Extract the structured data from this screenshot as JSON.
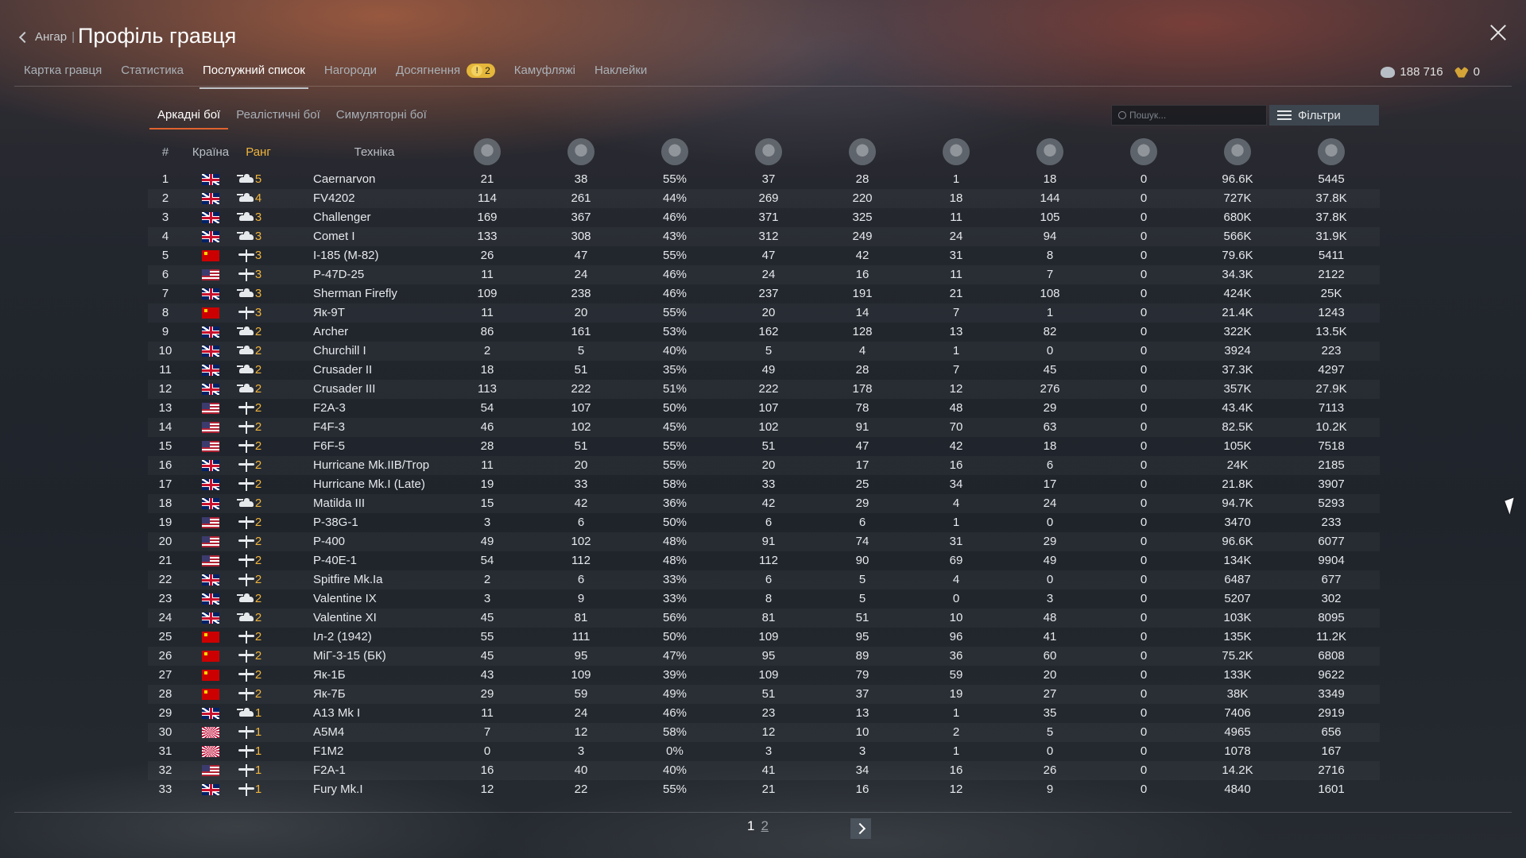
{
  "header": {
    "back_label": "Ангар",
    "separator": "|",
    "title": "Профіль гравця",
    "tabs": [
      {
        "label": "Картка гравця",
        "active": false
      },
      {
        "label": "Статистика",
        "active": false
      },
      {
        "label": "Послужний список",
        "active": true
      },
      {
        "label": "Нагороди",
        "active": false
      },
      {
        "label": "Досягнення",
        "active": false,
        "badge": "2",
        "badge_icon": "!"
      },
      {
        "label": "Камуфляжі",
        "active": false
      },
      {
        "label": "Наклейки",
        "active": false
      }
    ],
    "currency": {
      "lions": "188 716",
      "eagles": "0"
    }
  },
  "mode_tabs": [
    {
      "label": "Аркадні бої",
      "active": true
    },
    {
      "label": "Реалістичні бої",
      "active": false
    },
    {
      "label": "Симуляторні бої",
      "active": false
    }
  ],
  "search": {
    "placeholder": "Пошук..."
  },
  "filters_label": "Фільтри",
  "columns": {
    "number": "#",
    "country": "Країна",
    "rank": "Ранг",
    "vehicle": "Техніка",
    "stat_icons": [
      "victories-icon",
      "battles-icon",
      "win-rate-icon",
      "respawns-icon",
      "deaths-icon",
      "air-kills-icon",
      "ground-kills-icon",
      "naval-kills-icon",
      "score-icon",
      "activity-icon"
    ]
  },
  "rows": [
    {
      "n": "1",
      "flag": "uk",
      "rank": "5",
      "type": "tank",
      "name": "Caernarvon",
      "s": [
        "21",
        "38",
        "55%",
        "37",
        "28",
        "1",
        "18",
        "0",
        "96.6K",
        "5445"
      ]
    },
    {
      "n": "2",
      "flag": "uk",
      "rank": "4",
      "type": "tank",
      "name": "FV4202",
      "s": [
        "114",
        "261",
        "44%",
        "269",
        "220",
        "18",
        "144",
        "0",
        "727K",
        "37.8K"
      ]
    },
    {
      "n": "3",
      "flag": "uk",
      "rank": "3",
      "type": "tank",
      "name": "Challenger",
      "s": [
        "169",
        "367",
        "46%",
        "371",
        "325",
        "11",
        "105",
        "0",
        "680K",
        "37.8K"
      ]
    },
    {
      "n": "4",
      "flag": "uk",
      "rank": "3",
      "type": "tank",
      "name": "Comet I",
      "s": [
        "133",
        "308",
        "43%",
        "312",
        "249",
        "24",
        "94",
        "0",
        "566K",
        "31.9K"
      ]
    },
    {
      "n": "5",
      "flag": "ussr",
      "rank": "3",
      "type": "plane",
      "name": "I-185 (M-82)",
      "s": [
        "26",
        "47",
        "55%",
        "47",
        "42",
        "31",
        "8",
        "0",
        "79.6K",
        "5411"
      ]
    },
    {
      "n": "6",
      "flag": "us",
      "rank": "3",
      "type": "plane",
      "name": "P-47D-25",
      "s": [
        "11",
        "24",
        "46%",
        "24",
        "16",
        "11",
        "7",
        "0",
        "34.3K",
        "2122"
      ]
    },
    {
      "n": "7",
      "flag": "uk",
      "rank": "3",
      "type": "tank",
      "name": "Sherman Firefly",
      "s": [
        "109",
        "238",
        "46%",
        "237",
        "191",
        "21",
        "108",
        "0",
        "424K",
        "25K"
      ]
    },
    {
      "n": "8",
      "flag": "ussr",
      "rank": "3",
      "type": "plane",
      "name": "Як-9Т",
      "s": [
        "11",
        "20",
        "55%",
        "20",
        "14",
        "7",
        "1",
        "0",
        "21.4K",
        "1243"
      ]
    },
    {
      "n": "9",
      "flag": "uk",
      "rank": "2",
      "type": "tank",
      "name": "Archer",
      "s": [
        "86",
        "161",
        "53%",
        "162",
        "128",
        "13",
        "82",
        "0",
        "322K",
        "13.5K"
      ]
    },
    {
      "n": "10",
      "flag": "uk",
      "rank": "2",
      "type": "tank",
      "name": "Churchill I",
      "s": [
        "2",
        "5",
        "40%",
        "5",
        "4",
        "1",
        "0",
        "0",
        "3924",
        "223"
      ]
    },
    {
      "n": "11",
      "flag": "uk",
      "rank": "2",
      "type": "tank",
      "name": "Crusader II",
      "s": [
        "18",
        "51",
        "35%",
        "49",
        "28",
        "7",
        "45",
        "0",
        "37.3K",
        "4297"
      ]
    },
    {
      "n": "12",
      "flag": "uk",
      "rank": "2",
      "type": "tank",
      "name": "Crusader III",
      "s": [
        "113",
        "222",
        "51%",
        "222",
        "178",
        "12",
        "276",
        "0",
        "357K",
        "27.9K"
      ]
    },
    {
      "n": "13",
      "flag": "us",
      "rank": "2",
      "type": "plane",
      "name": "F2A-3",
      "s": [
        "54",
        "107",
        "50%",
        "107",
        "78",
        "48",
        "29",
        "0",
        "43.4K",
        "7113"
      ]
    },
    {
      "n": "14",
      "flag": "us",
      "rank": "2",
      "type": "plane",
      "name": "F4F-3",
      "s": [
        "46",
        "102",
        "45%",
        "102",
        "91",
        "70",
        "63",
        "0",
        "82.5K",
        "10.2K"
      ]
    },
    {
      "n": "15",
      "flag": "us",
      "rank": "2",
      "type": "plane",
      "name": "F6F-5",
      "s": [
        "28",
        "51",
        "55%",
        "51",
        "47",
        "42",
        "18",
        "0",
        "105K",
        "7518"
      ]
    },
    {
      "n": "16",
      "flag": "uk",
      "rank": "2",
      "type": "plane",
      "name": "Hurricane Mk.IIB/Trop",
      "s": [
        "11",
        "20",
        "55%",
        "20",
        "17",
        "16",
        "6",
        "0",
        "24K",
        "2185"
      ]
    },
    {
      "n": "17",
      "flag": "uk",
      "rank": "2",
      "type": "plane",
      "name": "Hurricane Mk.I (Late)",
      "s": [
        "19",
        "33",
        "58%",
        "33",
        "25",
        "34",
        "17",
        "0",
        "21.8K",
        "3907"
      ]
    },
    {
      "n": "18",
      "flag": "uk",
      "rank": "2",
      "type": "tank",
      "name": "Matilda III",
      "s": [
        "15",
        "42",
        "36%",
        "42",
        "29",
        "4",
        "24",
        "0",
        "94.7K",
        "5293"
      ]
    },
    {
      "n": "19",
      "flag": "us",
      "rank": "2",
      "type": "plane",
      "name": "P-38G-1",
      "s": [
        "3",
        "6",
        "50%",
        "6",
        "6",
        "1",
        "0",
        "0",
        "3470",
        "233"
      ]
    },
    {
      "n": "20",
      "flag": "us",
      "rank": "2",
      "type": "plane",
      "name": "P-400",
      "s": [
        "49",
        "102",
        "48%",
        "91",
        "74",
        "31",
        "29",
        "0",
        "96.6K",
        "6077"
      ]
    },
    {
      "n": "21",
      "flag": "us",
      "rank": "2",
      "type": "plane",
      "name": "P-40E-1",
      "s": [
        "54",
        "112",
        "48%",
        "112",
        "90",
        "69",
        "49",
        "0",
        "134K",
        "9904"
      ]
    },
    {
      "n": "22",
      "flag": "uk",
      "rank": "2",
      "type": "plane",
      "name": "Spitfire Mk.Ia",
      "s": [
        "2",
        "6",
        "33%",
        "6",
        "5",
        "4",
        "0",
        "0",
        "6487",
        "677"
      ]
    },
    {
      "n": "23",
      "flag": "uk",
      "rank": "2",
      "type": "tank",
      "name": "Valentine IX",
      "s": [
        "3",
        "9",
        "33%",
        "8",
        "5",
        "0",
        "3",
        "0",
        "5207",
        "302"
      ]
    },
    {
      "n": "24",
      "flag": "uk",
      "rank": "2",
      "type": "tank",
      "name": "Valentine XI",
      "s": [
        "45",
        "81",
        "56%",
        "81",
        "51",
        "10",
        "48",
        "0",
        "103K",
        "8095"
      ]
    },
    {
      "n": "25",
      "flag": "ussr",
      "rank": "2",
      "type": "plane",
      "name": "Іл-2 (1942)",
      "s": [
        "55",
        "111",
        "50%",
        "109",
        "95",
        "96",
        "41",
        "0",
        "135K",
        "11.2K"
      ]
    },
    {
      "n": "26",
      "flag": "ussr",
      "rank": "2",
      "type": "plane",
      "name": "МіГ-3-15 (БК)",
      "s": [
        "45",
        "95",
        "47%",
        "95",
        "89",
        "36",
        "60",
        "0",
        "75.2K",
        "6808"
      ]
    },
    {
      "n": "27",
      "flag": "ussr",
      "rank": "2",
      "type": "plane",
      "name": "Як-1Б",
      "s": [
        "43",
        "109",
        "39%",
        "109",
        "79",
        "59",
        "20",
        "0",
        "133K",
        "9622"
      ]
    },
    {
      "n": "28",
      "flag": "ussr",
      "rank": "2",
      "type": "plane",
      "name": "Як-7Б",
      "s": [
        "29",
        "59",
        "49%",
        "51",
        "37",
        "19",
        "27",
        "0",
        "38K",
        "3349"
      ]
    },
    {
      "n": "29",
      "flag": "uk",
      "rank": "1",
      "type": "tank",
      "name": "A13 Mk I",
      "s": [
        "11",
        "24",
        "46%",
        "23",
        "13",
        "1",
        "35",
        "0",
        "7406",
        "2919"
      ]
    },
    {
      "n": "30",
      "flag": "jp",
      "rank": "1",
      "type": "plane",
      "name": "A5M4",
      "s": [
        "7",
        "12",
        "58%",
        "12",
        "10",
        "2",
        "5",
        "0",
        "4965",
        "656"
      ]
    },
    {
      "n": "31",
      "flag": "jp",
      "rank": "1",
      "type": "plane",
      "name": "F1M2",
      "s": [
        "0",
        "3",
        "0%",
        "3",
        "3",
        "1",
        "0",
        "0",
        "1078",
        "167"
      ]
    },
    {
      "n": "32",
      "flag": "us",
      "rank": "1",
      "type": "plane",
      "name": "F2A-1",
      "s": [
        "16",
        "40",
        "40%",
        "41",
        "34",
        "16",
        "26",
        "0",
        "14.2K",
        "2716"
      ]
    },
    {
      "n": "33",
      "flag": "uk",
      "rank": "1",
      "type": "plane",
      "name": "Fury Mk.I",
      "s": [
        "12",
        "22",
        "55%",
        "21",
        "16",
        "12",
        "9",
        "0",
        "4840",
        "1601"
      ]
    }
  ],
  "pagination": {
    "current": "1",
    "pages": [
      "2"
    ]
  }
}
